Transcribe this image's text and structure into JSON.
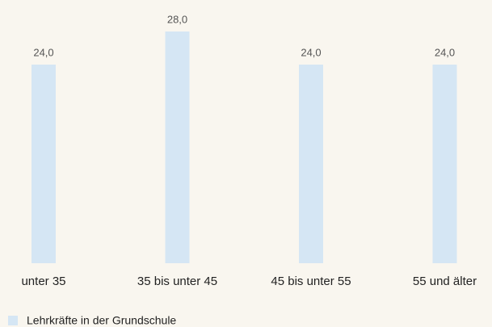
{
  "chart_data": {
    "type": "bar",
    "categories": [
      "unter 35",
      "35 bis unter 45",
      "45 bis unter 55",
      "55 und älter"
    ],
    "series": [
      {
        "name": "Lehrkräfte in der Grundschule",
        "color": "#d5e6f4",
        "values": [
          24,
          28,
          24,
          24
        ],
        "value_labels": [
          "24,0",
          "28,0",
          "24,0",
          "24,0"
        ]
      }
    ]
  }
}
